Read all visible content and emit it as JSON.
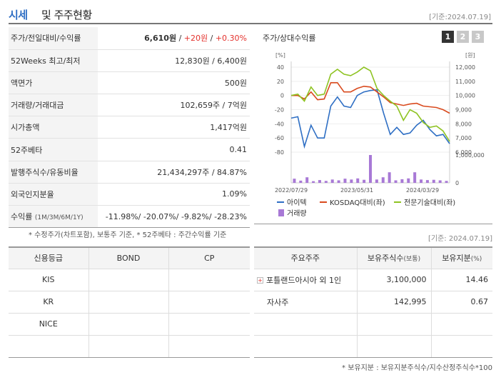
{
  "header": {
    "title_a": "시세",
    "title_b": "및 주주현황",
    "date": "[기준:2024.07.19]"
  },
  "market": {
    "rows": [
      {
        "label": "주가/전일대비/수익률",
        "v1": "6,610원",
        "sep1": " / ",
        "v2": "+20원",
        "sep2": " / ",
        "v3": "+0.30%"
      },
      {
        "label": "52Weeks 최고/최저",
        "value": "12,830원 / 6,400원"
      },
      {
        "label": "액면가",
        "value": "500원"
      },
      {
        "label": "거래량/거래대금",
        "value": "102,659주 / 7억원"
      },
      {
        "label": "시가총액",
        "value": "1,417억원"
      },
      {
        "label": "52주베타",
        "value": "0.41"
      },
      {
        "label": "발행주식수/유동비율",
        "value": "21,434,297주 / 84.87%"
      },
      {
        "label": "외국인지분율",
        "value": "1.09%"
      }
    ],
    "returns": {
      "label": "수익률",
      "sub": "(1M/3M/6M/1Y)",
      "value": "-11.98%/ -20.07%/ -9.82%/ -28.23%"
    },
    "note": "* 수정주가(차트포함), 보통주 기준, * 52주베타 : 주간수익률 기준"
  },
  "chart_title": "주가/상대수익률",
  "period_buttons": [
    "1",
    "2",
    "3"
  ],
  "chart_data": {
    "type": "line",
    "x_ticks": [
      "2022/07/29",
      "2023/05/31",
      "2024/03/29"
    ],
    "left_axis": {
      "unit": "[%]",
      "ticks": [
        "40",
        "20",
        "0",
        "-20",
        "-40",
        "-60",
        "-80"
      ],
      "range": [
        -80,
        40
      ]
    },
    "right_axis": {
      "unit": "[원]",
      "ticks": [
        "12,000",
        "11,000",
        "10,000",
        "9,000",
        "8,000",
        "7,000",
        "6,000"
      ],
      "range": [
        6000,
        12000
      ]
    },
    "volume_axis": {
      "ticks": [
        "1,000,000",
        "0"
      ],
      "range": [
        0,
        1000000
      ]
    },
    "series": [
      {
        "name": "아이텍",
        "color": "#2f6fc4",
        "values": [
          -32,
          -30,
          -72,
          -42,
          -60,
          -60,
          -15,
          -2,
          -15,
          -17,
          0,
          5,
          7,
          8,
          -25,
          -55,
          -45,
          -55,
          -53,
          -42,
          -35,
          -48,
          -57,
          -55,
          -68
        ]
      },
      {
        "name": "KOSDAQ대비(좌)",
        "color": "#d94a1e",
        "values": [
          0,
          0,
          -5,
          5,
          -6,
          -5,
          18,
          18,
          5,
          5,
          10,
          13,
          12,
          5,
          -2,
          -10,
          -12,
          -14,
          -12,
          -11,
          -15,
          -16,
          -17,
          -20,
          -25
        ]
      },
      {
        "name": "전문기술대비(좌)",
        "color": "#8ec322",
        "values": [
          0,
          2,
          -8,
          12,
          0,
          2,
          30,
          37,
          30,
          28,
          33,
          40,
          35,
          10,
          0,
          -8,
          -15,
          -35,
          -20,
          -25,
          -38,
          -45,
          -43,
          -50,
          -65
        ]
      },
      {
        "name": "거래량",
        "color": "#a879d6",
        "values": [
          150000,
          80000,
          200000,
          60000,
          100000,
          70000,
          120000,
          90000,
          150000,
          120000,
          160000,
          110000,
          1000000,
          120000,
          200000,
          380000,
          90000,
          130000,
          160000,
          380000,
          120000,
          100000,
          110000,
          90000,
          70000
        ]
      }
    ]
  },
  "credit": {
    "headers": [
      "신용등급",
      "BOND",
      "CP"
    ],
    "rows": [
      [
        "KIS",
        "",
        ""
      ],
      [
        "KR",
        "",
        ""
      ],
      [
        "NICE",
        "",
        ""
      ],
      [
        "",
        "",
        ""
      ]
    ]
  },
  "holders": {
    "headers": [
      "주요주주",
      "보유주식수",
      "(보통)",
      "보유지분",
      "(%)"
    ],
    "rows": [
      {
        "name": "포틀랜드아시아 외 1인",
        "shares": "3,100,000",
        "pct": "14.46",
        "expand": "+"
      },
      {
        "name": "자사주",
        "shares": "142,995",
        "pct": "0.67",
        "expand": ""
      },
      {
        "name": "",
        "shares": "",
        "pct": "",
        "expand": ""
      },
      {
        "name": "",
        "shares": "",
        "pct": "",
        "expand": ""
      }
    ],
    "date": "[기준: 2024.07.19]",
    "note": "* 보유지분 : 보유지분주식수/지수산정주식수*100"
  }
}
